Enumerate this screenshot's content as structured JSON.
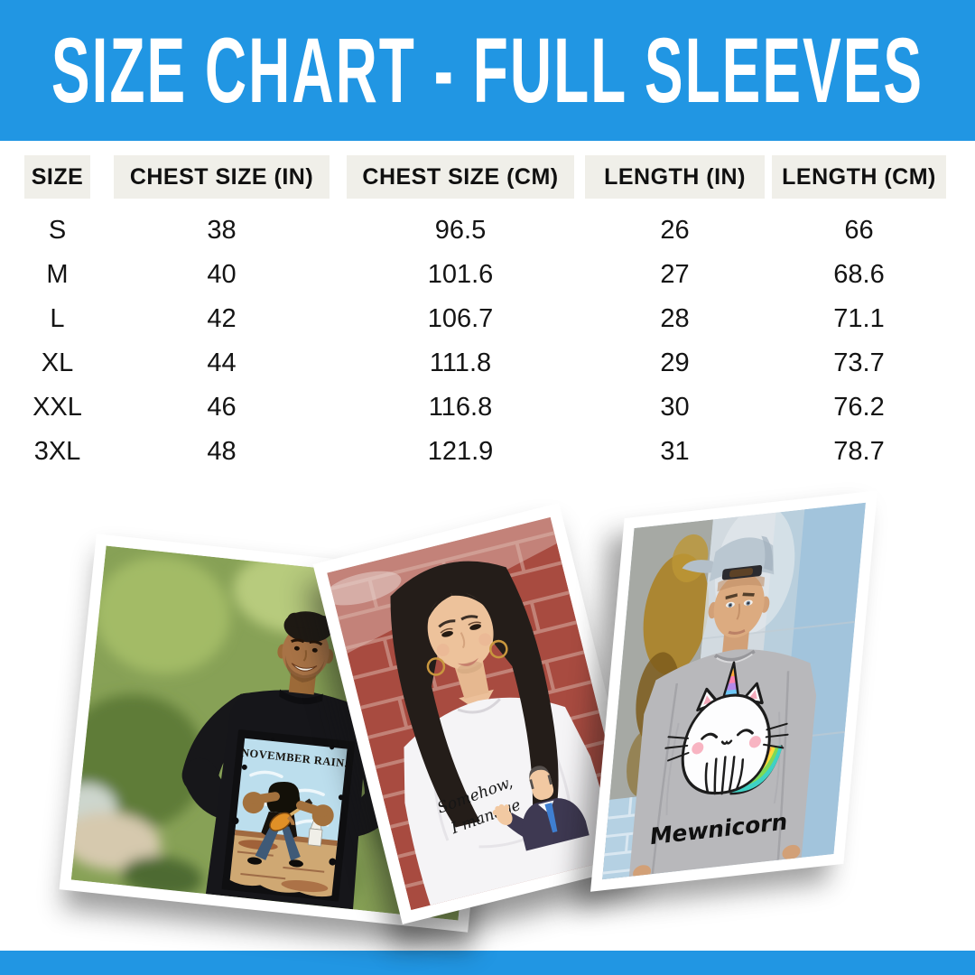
{
  "banner": {
    "title": "SIZE CHART - FULL SLEEVES",
    "bg_color": "#2196e3",
    "text_color": "#ffffff"
  },
  "size_table": {
    "columns": [
      "SIZE",
      "CHEST SIZE (IN)",
      "CHEST SIZE (CM)",
      "LENGTH (IN)",
      "LENGTH (CM)"
    ],
    "rows": [
      [
        "S",
        "38",
        "96.5",
        "26",
        "66"
      ],
      [
        "M",
        "40",
        "101.6",
        "27",
        "68.6"
      ],
      [
        "L",
        "42",
        "106.7",
        "28",
        "71.1"
      ],
      [
        "XL",
        "44",
        "111.8",
        "29",
        "73.7"
      ],
      [
        "XXL",
        "46",
        "116.8",
        "30",
        "76.2"
      ],
      [
        "3XL",
        "48",
        "121.9",
        "31",
        "78.7"
      ]
    ],
    "header_bg": "#f0efe9",
    "text_color": "#141414"
  },
  "photos": [
    {
      "shirt": "black full-sleeve tee",
      "print_text": "NOVEMBER RAIN."
    },
    {
      "shirt": "white full-sleeve tee",
      "print_line1": "Somehow,",
      "print_line2": "I manage"
    },
    {
      "shirt": "grey full-sleeve tee",
      "print_text": "Mewnicorn"
    }
  ],
  "footer": {
    "bg_color": "#2196e3"
  }
}
